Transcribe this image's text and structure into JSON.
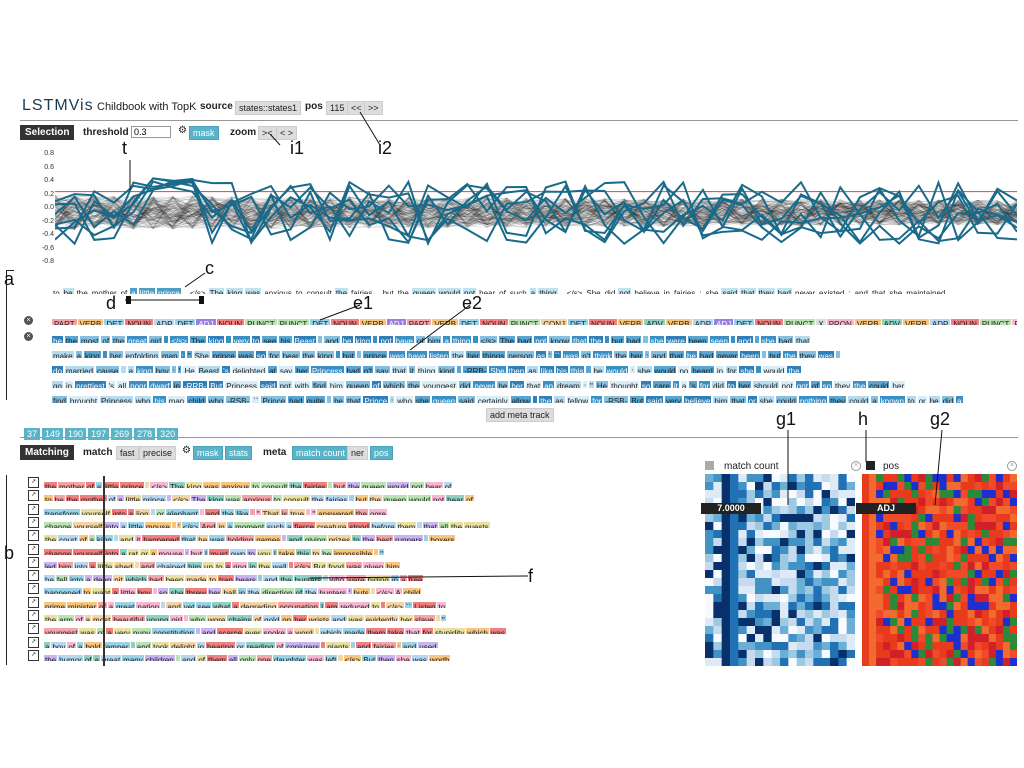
{
  "app": {
    "logo": "LSTMVis",
    "title": "Childbook with TopK"
  },
  "header": {
    "source_label": "source",
    "source_value": "states::states1",
    "pos_label": "pos",
    "pos_value": "115",
    "prev": "<<",
    "next": ">>"
  },
  "selection": {
    "tab": "Selection",
    "threshold_label": "threshold",
    "threshold_value": "0.3",
    "mask": "mask",
    "zoom_label": "zoom",
    "zoom_in": "><",
    "zoom_out": "< >",
    "y_ticks": [
      "0.8",
      "0.6",
      "0.4",
      "0.2",
      "0.0",
      "-0.2",
      "-0.4",
      "-0.6",
      "-0.8"
    ],
    "words": [
      "to",
      "be",
      "the",
      "mother",
      "of",
      "a",
      "little",
      "prince",
      ".",
      "</s>",
      "The",
      "king",
      "was",
      "anxious",
      "to",
      "consult",
      "the",
      "fairies",
      ",",
      "but",
      "the",
      "queen",
      "would",
      "not",
      "hear",
      "of",
      "such",
      "a",
      "thing",
      ".",
      "</s>",
      "She",
      "did",
      "not",
      "believe",
      "in",
      "fairies",
      ":",
      "she",
      "said",
      "that",
      "they",
      "had",
      "never",
      "existed",
      ";",
      "and",
      "that",
      "she",
      "maintained"
    ],
    "pos": [
      "PART",
      "VERB",
      "DET",
      "NOUN",
      "ADP",
      "DET",
      "ADJ",
      "NOUN",
      "PUNCT",
      "PUNCT",
      "DET",
      "NOUN",
      "VERB",
      "ADJ",
      "PART",
      "VERB",
      "DET",
      "NOUN",
      "PUNCT",
      "CONJ",
      "DET",
      "NOUN",
      "VERB",
      "ADV",
      "VERB",
      "ADP",
      "ADJ",
      "DET",
      "NOUN",
      "PUNCT",
      "X",
      "PRON",
      "VERB",
      "ADV",
      "VERB",
      "ADP",
      "NOUN",
      "PUNCT",
      "PRON",
      "VERB",
      "ADP",
      "PRON",
      "VERB",
      "ADV",
      "VERB",
      "PUNCT",
      "CONJ",
      "ADP",
      "PRON",
      "VERB"
    ],
    "meta_rows": [
      [
        "be",
        "the",
        "most",
        "of",
        "the",
        "great",
        "girl",
        ".",
        "</s>",
        "The",
        "king",
        ",",
        "very",
        "to",
        "see",
        "his",
        "Beast",
        ",",
        "and",
        "he",
        "king",
        ",",
        "not",
        "have",
        "of",
        "him",
        "a",
        "thing",
        ".",
        "</s>",
        "The",
        "had",
        "not",
        "know",
        "that",
        "the",
        ",",
        "but",
        "had",
        ",",
        "she",
        "were",
        "been",
        "seen",
        ",",
        "and",
        ",",
        "she",
        "had",
        "that"
      ],
      [
        "make",
        "a",
        "king",
        ",",
        "her",
        "enfolding",
        "man",
        ";",
        "\"",
        "She",
        "prince",
        "was",
        "so",
        "for",
        "hear",
        "the",
        "king",
        ".",
        "but",
        ",",
        "prince",
        "was",
        "have",
        "listen",
        "the",
        "her",
        "things",
        "person",
        "as",
        "'",
        "``",
        "was",
        "n't",
        "think",
        "the",
        "her",
        ";",
        "and",
        "that",
        "he",
        "had",
        "never",
        "been",
        ".",
        "but",
        "the",
        "they",
        "was",
        ","
      ],
      [
        "do",
        "married",
        "cause",
        ",",
        "a",
        "king",
        "boy",
        ";",
        "'",
        "He",
        "Beast",
        "'s",
        "delighted",
        "at",
        "say",
        "her",
        "Princess",
        "had",
        "n't",
        "say",
        "that",
        "it",
        "thing",
        "kind",
        ".",
        "-RRB-",
        "She",
        "then",
        "as",
        "like",
        "his",
        "this",
        ".",
        "he",
        "would",
        ":",
        "she",
        "would",
        "no",
        "heard",
        "in",
        "for",
        "she",
        ",",
        "would",
        "the"
      ],
      [
        "go",
        "in",
        "prettiest",
        "'s",
        "all",
        "poor",
        "dwarf",
        "in",
        "-RRB-",
        "But",
        "Princess",
        "said",
        "not",
        "with",
        "find",
        "him",
        "queen",
        "of",
        "which",
        "the",
        "youngest",
        "did",
        "never",
        "be",
        "her",
        "that",
        "an",
        "dream",
        ";",
        "\"",
        "He",
        "thought",
        "so",
        "care",
        "it",
        "a",
        "'s",
        "for",
        "did",
        "to",
        "her",
        "should",
        "not",
        "got",
        "of",
        "so",
        "they",
        "the",
        "could",
        "her"
      ],
      [
        "find",
        "brought",
        "Princess",
        "who",
        "his",
        "man",
        "child",
        "who",
        "-RSB-",
        "``",
        "Prince",
        "had",
        "quite",
        ",",
        "be",
        "that",
        "Prince",
        ";",
        "who",
        "she",
        "queen",
        "said",
        "certainly",
        "allow",
        ",",
        "the",
        "as",
        "fellow",
        "for",
        "-RSB-",
        "But",
        "said",
        "very",
        "believe",
        "him",
        "that",
        "or",
        "she",
        "could",
        "nothing",
        "they",
        "could",
        "a",
        "known",
        "to",
        "or",
        "he",
        "did",
        "a"
      ]
    ],
    "add_meta": "add meta track",
    "ids": [
      "37",
      "149",
      "190",
      "197",
      "269",
      "278",
      "320"
    ]
  },
  "matching": {
    "tab": "Matching",
    "match_label": "match",
    "fast": "fast",
    "precise": "precise",
    "mask": "mask",
    "stats": "stats",
    "meta_label": "meta",
    "meta_options": [
      "match count",
      "ner",
      "pos"
    ],
    "rows": [
      [
        "the",
        "mother",
        "of",
        "a",
        "little",
        "prince",
        ".",
        "</s>",
        "The",
        "king",
        "was",
        "anxious",
        "to",
        "consult",
        "the",
        "fairies",
        ",",
        "but",
        "the",
        "queen",
        "would",
        "not",
        "hear",
        "of"
      ],
      [
        "to",
        "be",
        "the",
        "mother",
        "of",
        "a",
        "little",
        "prince",
        ".",
        "</s>",
        "The",
        "king",
        "was",
        "anxious",
        "to",
        "consult",
        "the",
        "fairies",
        ",",
        "but",
        "the",
        "queen",
        "would",
        "not",
        "hear",
        "of"
      ],
      [
        "transform",
        "yourself",
        "into",
        "a",
        "lion",
        ",",
        "or",
        "elephant",
        ",",
        "and",
        "the",
        "like",
        ".",
        "\"",
        "That",
        "is",
        "true",
        ",",
        "\"",
        "answered",
        "the",
        "ogre"
      ],
      [
        "change",
        "yourself",
        "into",
        "a",
        "little",
        "mouse",
        ".",
        "'",
        "</s>",
        "And",
        "in",
        "a",
        "moment",
        "such",
        "a",
        "fierce",
        "creature",
        "stood",
        "before",
        "them",
        ",",
        "that",
        "all",
        "the",
        "guests"
      ],
      [
        "the",
        "court",
        "of",
        "a",
        "king",
        ",",
        "and",
        "it",
        "happened",
        "that",
        "he",
        "was",
        "holding",
        "games",
        ",",
        "and",
        "giving",
        "prizes",
        "to",
        "the",
        "best",
        "runners",
        ",",
        "boxers"
      ],
      [
        "change",
        "yourself",
        "into",
        "a",
        "rat",
        "or",
        "a",
        "mouse",
        ";",
        "but",
        "I",
        "must",
        "own",
        "to",
        "you",
        "I",
        "take",
        "this",
        "to",
        "be",
        "impossible",
        ".",
        "\""
      ],
      [
        "led",
        "him",
        "into",
        "a",
        "little",
        "shed",
        ",",
        "and",
        "chained",
        "him",
        "up",
        "to",
        "a",
        "ring",
        "in",
        "the",
        "wall",
        ".",
        "</s>",
        "But",
        "food",
        "was",
        "given",
        "him"
      ],
      [
        "he",
        "fell",
        "into",
        "a",
        "deep",
        "pit",
        "which",
        "had",
        "been",
        "made",
        "to",
        "trap",
        "bears",
        ",",
        "and",
        "the",
        "hunters",
        ",",
        "who",
        "were",
        "hiding",
        "in",
        "a",
        "tree"
      ],
      [
        "happened",
        "to",
        "want",
        "a",
        "little",
        "boy",
        ",",
        "so",
        "she",
        "threw",
        "her",
        "ball",
        "in",
        "the",
        "direction",
        "of",
        "the",
        "hunters",
        "'",
        "huts",
        ".",
        "</s>",
        "A",
        "child"
      ],
      [
        "prime",
        "minister",
        "of",
        "a",
        "great",
        "nation",
        ",",
        "and",
        "yet",
        "see",
        "what",
        "a",
        "degrading",
        "occupation",
        "I",
        "am",
        "reduced",
        "to",
        ".",
        "</s>",
        "``",
        "Listen",
        "to"
      ],
      [
        "the",
        "arm",
        "of",
        "a",
        "most",
        "beautiful",
        "young",
        "girl",
        ",",
        "who",
        "wore",
        "chains",
        "of",
        "gold",
        "on",
        "her",
        "wrists",
        "and",
        "was",
        "evidently",
        "her",
        "slave",
        ".",
        "\""
      ],
      [
        "youngest",
        "was",
        "of",
        "a",
        "very",
        "puny",
        "constitution",
        ",",
        "and",
        "scarce",
        "ever",
        "spoke",
        "a",
        "word",
        ",",
        "which",
        "made",
        "them",
        "take",
        "that",
        "for",
        "stupidity",
        "which",
        "was"
      ],
      [
        "a",
        "boy",
        "of",
        "a",
        "bold",
        "temper",
        ",",
        "and",
        "took",
        "delight",
        "in",
        "hearing",
        "or",
        "reading",
        "of",
        "conjurers",
        ",",
        "giants",
        ",",
        "and",
        "fairies",
        ";",
        "and",
        "used"
      ],
      [
        "the",
        "humor",
        "of",
        "a",
        "great",
        "many",
        "children",
        ",",
        "and",
        "of",
        "them",
        "all",
        "only",
        "one",
        "daughter",
        "was",
        "left",
        ".",
        "</s>",
        "But",
        "then",
        "she",
        "was",
        "worth"
      ]
    ]
  },
  "heatmaps": {
    "match_count_title": "match count",
    "match_count_value": "7.0000",
    "pos_title": "pos",
    "pos_value": "ADJ"
  },
  "annotations": [
    "a",
    "b",
    "c",
    "d",
    "e1",
    "e2",
    "f",
    "g1",
    "g2",
    "h",
    "i1",
    "i2",
    "t"
  ],
  "colors": {
    "accent": "#5bb3c8",
    "line": "#1a6a8a",
    "threshold": "#e04040"
  }
}
